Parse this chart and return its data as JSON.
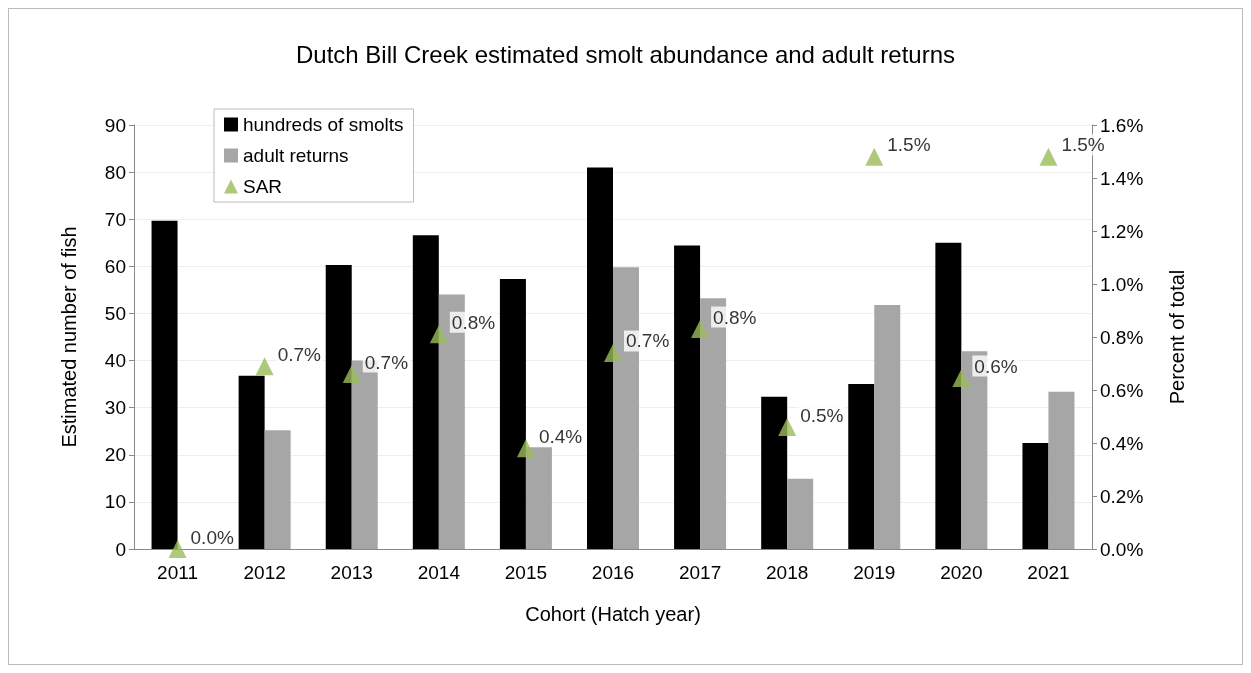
{
  "chart_data": {
    "type": "bar",
    "title": "Dutch Bill Creek estimated smolt abundance and adult returns",
    "xlabel": "Cohort (Hatch year)",
    "ylabel": "Estimated number of fish",
    "y2label": "Percent of total",
    "categories": [
      "2011",
      "2012",
      "2013",
      "2014",
      "2015",
      "2016",
      "2017",
      "2018",
      "2019",
      "2020",
      "2021"
    ],
    "series": [
      {
        "name": "hundreds of smolts",
        "color": "#000000",
        "values": [
          69.7,
          36.8,
          60.3,
          66.6,
          57.3,
          81,
          64.4,
          32.3,
          35,
          65,
          22.5
        ]
      },
      {
        "name": "adult returns",
        "color": "#a6a6a6",
        "values": [
          0,
          25.2,
          40,
          54,
          21.6,
          59.8,
          53.2,
          14.9,
          51.8,
          42,
          33.4
        ]
      },
      {
        "name": "SAR",
        "type": "scatter",
        "axis": "y2",
        "color": "#9bbb59",
        "marker": "triangle",
        "values": [
          0,
          0.69,
          0.66,
          0.81,
          0.38,
          0.74,
          0.83,
          0.46,
          1.48,
          0.645,
          1.48
        ],
        "value_labels": [
          "0.0%",
          "0.7%",
          "0.7%",
          "0.8%",
          "0.4%",
          "0.7%",
          "0.8%",
          "0.5%",
          "1.5%",
          "0.6%",
          "1.5%"
        ]
      }
    ],
    "ylim": [
      0,
      90
    ],
    "yticks": [
      0,
      10,
      20,
      30,
      40,
      50,
      60,
      70,
      80,
      90
    ],
    "y2lim": [
      0,
      1.6
    ],
    "y2ticks": [
      {
        "value": 0,
        "label": "0.0%"
      },
      {
        "value": 0.2,
        "label": "0.2%"
      },
      {
        "value": 0.4,
        "label": "0.4%"
      },
      {
        "value": 0.6,
        "label": "0.6%"
      },
      {
        "value": 0.8,
        "label": "0.8%"
      },
      {
        "value": 1,
        "label": "1.0%"
      },
      {
        "value": 1.2,
        "label": "1.2%"
      },
      {
        "value": 1.4,
        "label": "1.4%"
      },
      {
        "value": 1.6,
        "label": "1.6%"
      }
    ],
    "grid": "y",
    "legend": "top left"
  }
}
